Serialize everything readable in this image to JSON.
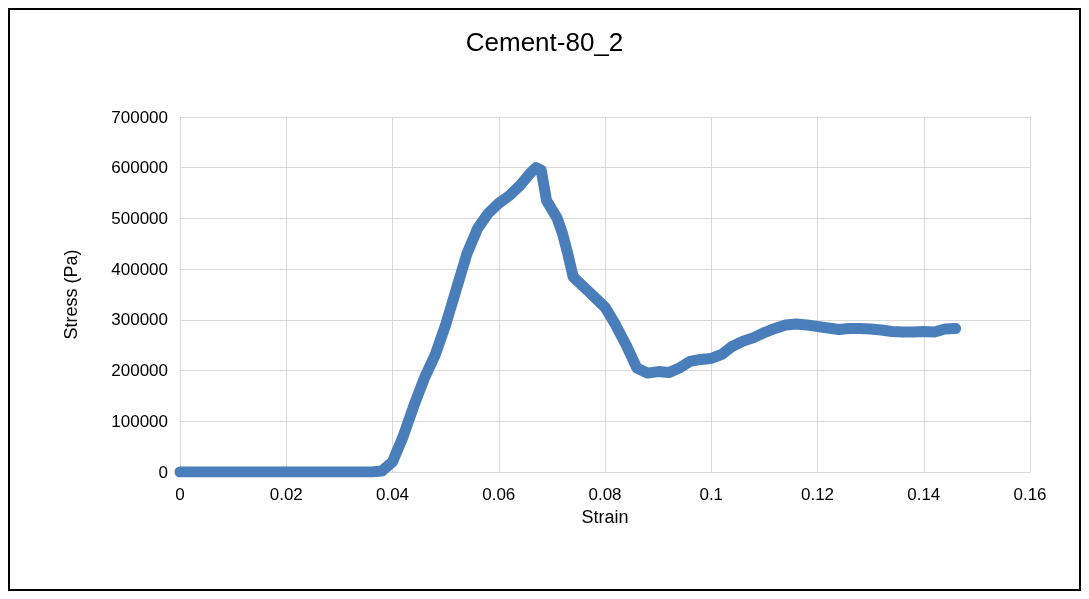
{
  "chart_data": {
    "type": "line",
    "title": "Cement-80_2",
    "xlabel": "Strain",
    "ylabel": "Stress (Pa)",
    "xlim": [
      0,
      0.16
    ],
    "xticks": [
      0,
      0.02,
      0.04,
      0.06,
      0.08,
      0.1,
      0.12,
      0.14,
      0.16
    ],
    "ylim": [
      0,
      700000
    ],
    "yticks": [
      0,
      100000,
      200000,
      300000,
      400000,
      500000,
      600000,
      700000
    ],
    "grid": true,
    "line_style": "solid",
    "series": [
      {
        "color": "#4a7ebb",
        "x": [
          0,
          0.01,
          0.02,
          0.03,
          0.036,
          0.038,
          0.04,
          0.042,
          0.044,
          0.046,
          0.048,
          0.05,
          0.052,
          0.054,
          0.056,
          0.058,
          0.06,
          0.062,
          0.064,
          0.066,
          0.067,
          0.068,
          0.069,
          0.071,
          0.072,
          0.073,
          0.074,
          0.076,
          0.078,
          0.08,
          0.082,
          0.084,
          0.086,
          0.088,
          0.09,
          0.092,
          0.094,
          0.096,
          0.098,
          0.1,
          0.102,
          0.104,
          0.106,
          0.108,
          0.11,
          0.112,
          0.114,
          0.116,
          0.118,
          0.12,
          0.122,
          0.124,
          0.126,
          0.128,
          0.13,
          0.132,
          0.134,
          0.136,
          0.138,
          0.14,
          0.142,
          0.144,
          0.146
        ],
        "values": [
          0,
          0,
          0,
          0,
          0,
          2000,
          20000,
          70000,
          130000,
          185000,
          230000,
          290000,
          360000,
          430000,
          480000,
          510000,
          530000,
          545000,
          565000,
          590000,
          600000,
          595000,
          535000,
          500000,
          470000,
          430000,
          385000,
          365000,
          345000,
          325000,
          290000,
          250000,
          205000,
          195000,
          198000,
          196000,
          205000,
          218000,
          222000,
          224000,
          232000,
          248000,
          258000,
          265000,
          275000,
          283000,
          290000,
          292000,
          290000,
          287000,
          284000,
          281000,
          283000,
          283000,
          282000,
          280000,
          277000,
          276000,
          276000,
          277000,
          276000,
          282000,
          283000
        ]
      }
    ]
  }
}
